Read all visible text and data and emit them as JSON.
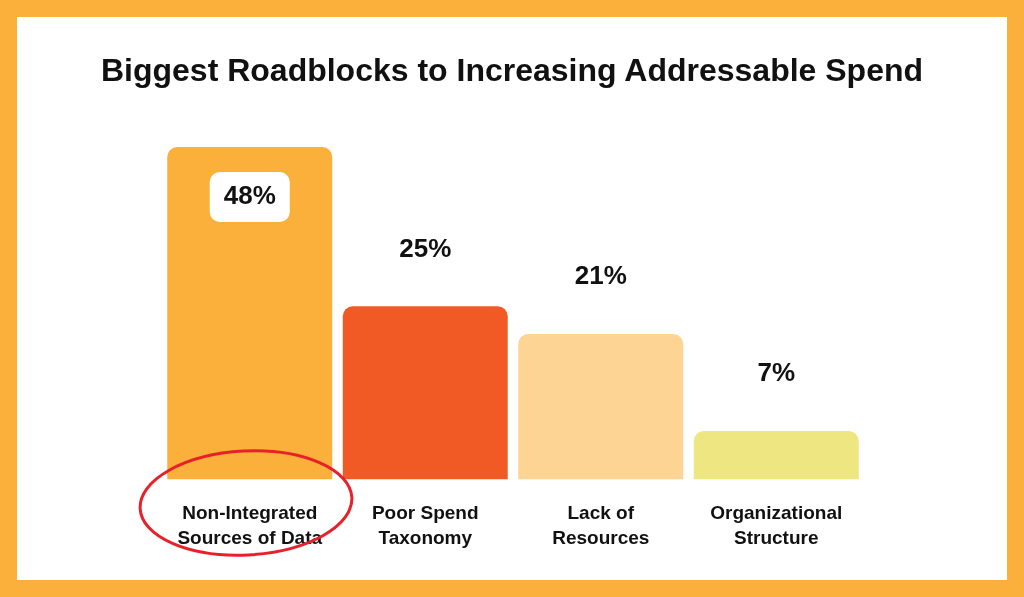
{
  "chart_data": {
    "type": "bar",
    "title": "Biggest Roadblocks to Increasing Addressable Spend",
    "categories": [
      "Non-Integrated Sources of Data",
      "Poor Spend Taxonomy",
      "Lack of Resources",
      "Organizational Structure"
    ],
    "values": [
      48,
      25,
      21,
      7
    ],
    "value_labels": [
      "48%",
      "25%",
      "21%",
      "7%"
    ],
    "colors": [
      "#fbb03b",
      "#f15a24",
      "#fdd493",
      "#ede681"
    ]
  }
}
